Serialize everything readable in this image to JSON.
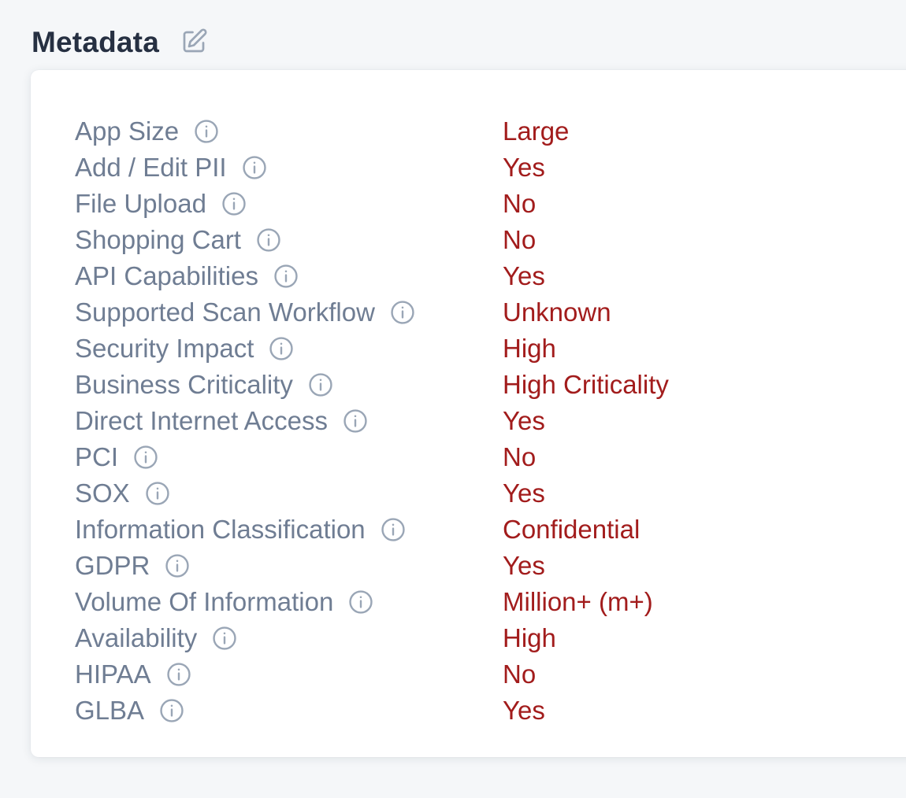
{
  "section": {
    "title": "Metadata"
  },
  "colors": {
    "title": "#263042",
    "label": "#6f7d93",
    "value": "#a21c1c",
    "icon": "#9aa6b6",
    "page_background": "#f5f7f9",
    "card_background": "#ffffff"
  },
  "icons": {
    "edit": "edit-icon",
    "info": "info-icon"
  },
  "metadata": [
    {
      "label": "App Size",
      "value": "Large"
    },
    {
      "label": "Add / Edit PII",
      "value": "Yes"
    },
    {
      "label": "File Upload",
      "value": "No"
    },
    {
      "label": "Shopping Cart",
      "value": "No"
    },
    {
      "label": "API Capabilities",
      "value": "Yes"
    },
    {
      "label": "Supported Scan Workflow",
      "value": "Unknown"
    },
    {
      "label": "Security Impact",
      "value": "High"
    },
    {
      "label": "Business Criticality",
      "value": "High Criticality"
    },
    {
      "label": "Direct Internet Access",
      "value": "Yes"
    },
    {
      "label": "PCI",
      "value": "No"
    },
    {
      "label": "SOX",
      "value": "Yes"
    },
    {
      "label": "Information Classification",
      "value": "Confidential"
    },
    {
      "label": "GDPR",
      "value": "Yes"
    },
    {
      "label": "Volume Of Information",
      "value": "Million+ (m+)"
    },
    {
      "label": "Availability",
      "value": "High"
    },
    {
      "label": "HIPAA",
      "value": "No"
    },
    {
      "label": "GLBA",
      "value": "Yes"
    }
  ]
}
